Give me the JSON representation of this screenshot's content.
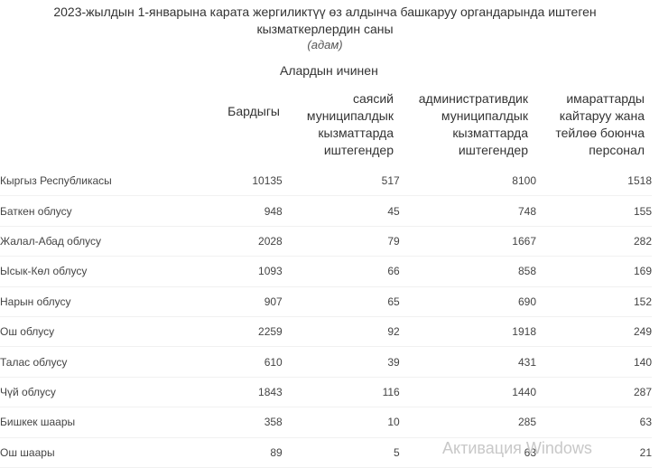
{
  "title_line1": "2023-жылдын 1-январына карата жергиликтүү өз алдынча башкаруу органдарында иштеген",
  "title_line2": "кызматкерлердин саны",
  "unit": "(адам)",
  "group_header": "Алардын ичинен",
  "columns": {
    "total": "Бардыгы",
    "political": [
      "саясий",
      "муниципалдык",
      "кызматтарда",
      "иштегендер"
    ],
    "administrative": [
      "административдик",
      "муниципалдык",
      "кызматтарда",
      "иштегендер"
    ],
    "maintenance": [
      "имараттарды",
      "кайтаруу жана",
      "тейлөө боюнча",
      "персонал"
    ]
  },
  "rows": [
    {
      "name": "Кыргыз Республикасы",
      "total": "10135",
      "political": "517",
      "administrative": "8100",
      "maintenance": "1518"
    },
    {
      "name": "Баткен облусу",
      "total": "948",
      "political": "45",
      "administrative": "748",
      "maintenance": "155"
    },
    {
      "name": "Жалал-Абад облусу",
      "total": "2028",
      "political": "79",
      "administrative": "1667",
      "maintenance": "282"
    },
    {
      "name": "Ысык-Көл облусу",
      "total": "1093",
      "political": "66",
      "administrative": "858",
      "maintenance": "169"
    },
    {
      "name": "Нарын облусу",
      "total": "907",
      "political": "65",
      "administrative": "690",
      "maintenance": "152"
    },
    {
      "name": "Ош облусу",
      "total": "2259",
      "political": "92",
      "administrative": "1918",
      "maintenance": "249"
    },
    {
      "name": "Талас облусу",
      "total": "610",
      "political": "39",
      "administrative": "431",
      "maintenance": "140"
    },
    {
      "name": "Чүй облусу",
      "total": "1843",
      "political": "116",
      "administrative": "1440",
      "maintenance": "287"
    },
    {
      "name": "Бишкек шаары",
      "total": "358",
      "political": "10",
      "administrative": "285",
      "maintenance": "63"
    },
    {
      "name": "Ош шаары",
      "total": "89",
      "political": "5",
      "administrative": "63",
      "maintenance": "21"
    }
  ],
  "watermark": "Активация Windows"
}
